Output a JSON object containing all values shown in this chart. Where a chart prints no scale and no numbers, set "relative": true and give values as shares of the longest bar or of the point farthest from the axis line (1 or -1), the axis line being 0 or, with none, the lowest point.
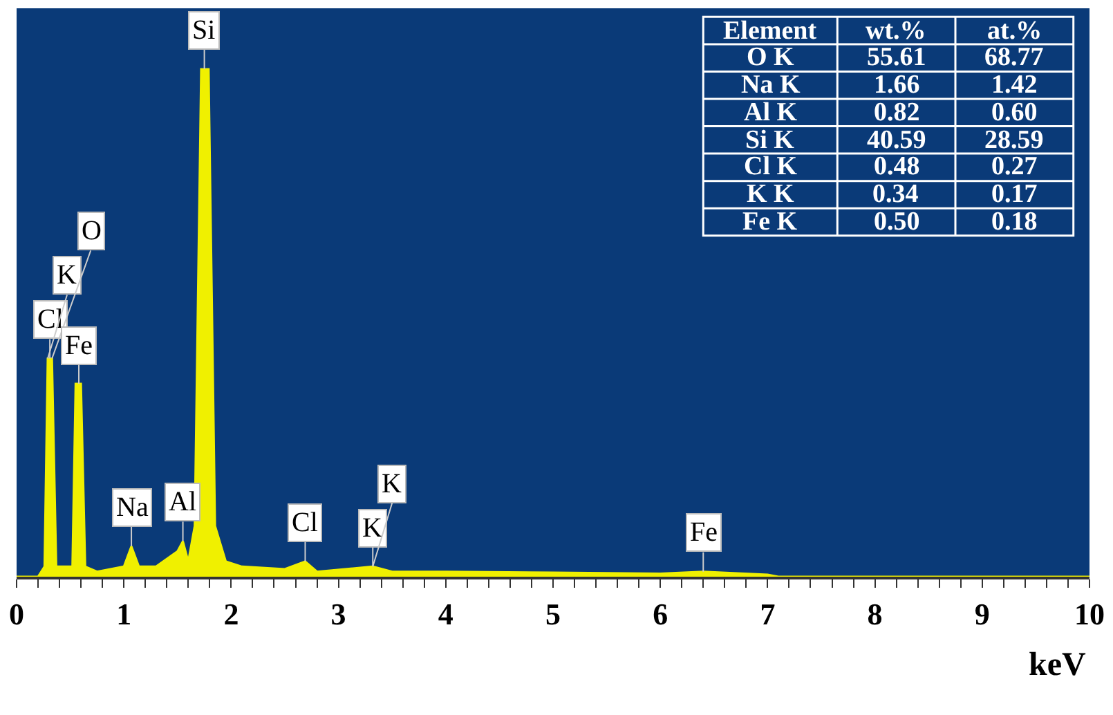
{
  "chart_data": {
    "type": "area",
    "relative": true,
    "xlabel": "keV",
    "xlim": [
      0,
      10
    ],
    "xticks": [
      0,
      {
        "value": 0.2,
        "label": null
      },
      {
        "value": 0.4,
        "label": null
      },
      {
        "value": 0.6,
        "label": null
      },
      {
        "value": 0.8,
        "label": null
      },
      1,
      {
        "value": 1.2,
        "label": null
      },
      {
        "value": 1.4,
        "label": null
      },
      {
        "value": 1.6,
        "label": null
      },
      {
        "value": 1.8,
        "label": null
      },
      2,
      {
        "value": 2.2,
        "label": null
      },
      {
        "value": 2.4,
        "label": null
      },
      {
        "value": 2.6,
        "label": null
      },
      {
        "value": 2.8,
        "label": null
      },
      3,
      {
        "value": 3.2,
        "label": null
      },
      {
        "value": 3.4,
        "label": null
      },
      {
        "value": 3.6,
        "label": null
      },
      {
        "value": 3.8,
        "label": null
      },
      4,
      {
        "value": 4.2,
        "label": null
      },
      {
        "value": 4.4,
        "label": null
      },
      {
        "value": 4.6,
        "label": null
      },
      {
        "value": 4.8,
        "label": null
      },
      5,
      {
        "value": 5.2,
        "label": null
      },
      {
        "value": 5.4,
        "label": null
      },
      {
        "value": 5.6,
        "label": null
      },
      {
        "value": 5.8,
        "label": null
      },
      6,
      {
        "value": 6.2,
        "label": null
      },
      {
        "value": 6.4,
        "label": null
      },
      {
        "value": 6.6,
        "label": null
      },
      {
        "value": 6.8,
        "label": null
      },
      7,
      {
        "value": 7.2,
        "label": null
      },
      {
        "value": 7.4,
        "label": null
      },
      {
        "value": 7.6,
        "label": null
      },
      {
        "value": 7.8,
        "label": null
      },
      8,
      {
        "value": 8.2,
        "label": null
      },
      {
        "value": 8.4,
        "label": null
      },
      {
        "value": 8.6,
        "label": null
      },
      {
        "value": 8.8,
        "label": null
      },
      9,
      {
        "value": 9.2,
        "label": null
      },
      {
        "value": 9.4,
        "label": null
      },
      {
        "value": 9.6,
        "label": null
      },
      {
        "value": 9.8,
        "label": null
      },
      10
    ],
    "grid": false,
    "series": [
      {
        "color": "#f0f000",
        "x": [
          0,
          0.2,
          0.26,
          0.29,
          0.33,
          0.37,
          0.45,
          0.52,
          0.55,
          0.6,
          0.64,
          0.75,
          1.0,
          1.07,
          1.14,
          1.3,
          1.5,
          1.55,
          1.6,
          1.66,
          1.72,
          1.79,
          1.85,
          1.95,
          2.1,
          2.5,
          2.69,
          2.8,
          3.32,
          3.5,
          4,
          5,
          6,
          6.4,
          7,
          7.1,
          10
        ],
        "values": [
          0,
          0,
          0.02,
          0.43,
          0.43,
          0.02,
          0.02,
          0.02,
          0.38,
          0.38,
          0.02,
          0.01,
          0.02,
          0.06,
          0.02,
          0.02,
          0.05,
          0.07,
          0.03,
          0.1,
          1,
          1,
          0.1,
          0.03,
          0.02,
          0.015,
          0.03,
          0.01,
          0.02,
          0.01,
          0.01,
          0.008,
          0.006,
          0.01,
          0.004,
          0,
          0
        ]
      }
    ],
    "annotations": [
      {
        "text": "Si",
        "x": 1.75,
        "y": 1
      },
      {
        "text": "Cl",
        "x": 0.31,
        "y": 0.43
      },
      {
        "text": "K",
        "x": 0.29,
        "y": 0.43
      },
      {
        "text": "O",
        "x": 0.33,
        "y": 0.43
      },
      {
        "text": "Fe",
        "x": 0.58,
        "y": 0.38
      },
      {
        "text": "Na",
        "x": 1.07,
        "y": 0.06
      },
      {
        "text": "Al",
        "x": 1.55,
        "y": 0.07
      },
      {
        "text": "Cl",
        "x": 2.69,
        "y": 0.03
      },
      {
        "text": "K",
        "x": 3.32,
        "y": 0.02
      },
      {
        "text": "K",
        "x": 3.32,
        "y": 0.02
      },
      {
        "text": "Fe",
        "x": 6.4,
        "y": 0.01
      },
      "Element",
      "wt.%",
      "at.%",
      "O K",
      "55.61",
      "68.77",
      "Na K",
      "1.66",
      "1.42",
      "Al K",
      "0.82",
      "0.60",
      "Si K",
      "40.59",
      "28.59",
      "Cl K",
      "0.48",
      "0.27",
      "K K",
      "0.34",
      "0.17",
      "Fe K",
      "0.50",
      "0.18"
    ]
  }
}
